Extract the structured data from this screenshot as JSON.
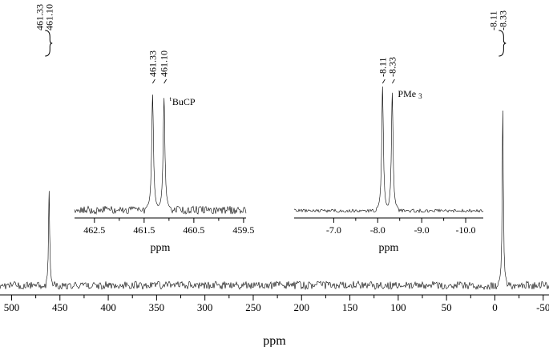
{
  "chart_data": {
    "type": "line",
    "title": "",
    "main": {
      "xlabel": "ppm",
      "xlim": [
        512,
        -56
      ],
      "ticks": [
        500,
        450,
        400,
        350,
        300,
        250,
        200,
        150,
        100,
        50,
        0,
        -50
      ],
      "tick_labels": [
        "500",
        "450",
        "400",
        "350",
        "300",
        "250",
        "200",
        "150",
        "100",
        "50",
        "0",
        "-50"
      ],
      "peaks": [
        {
          "ppm": 461.2,
          "height": 0.54
        },
        {
          "ppm": -8.2,
          "height": 1.0
        }
      ],
      "peak_groups": [
        {
          "labels": [
            "461.33",
            "461.10"
          ],
          "at": 461.2
        },
        {
          "labels": [
            "-8.11",
            "-8.33"
          ],
          "at": -8.2
        }
      ]
    },
    "insets": [
      {
        "xlabel": "ppm",
        "xlim": [
          462.9,
          459.45
        ],
        "ticks": [
          462.5,
          461.5,
          460.5,
          459.5
        ],
        "tick_labels": [
          "462.5",
          "461.5",
          "460.5",
          "459.5"
        ],
        "peaks": [
          {
            "ppm": 461.33,
            "height": 1.0
          },
          {
            "ppm": 461.1,
            "height": 0.97
          }
        ],
        "peak_labels": [
          "461.33",
          "461.10"
        ],
        "annotation_sup": "t",
        "annotation": "BuCP"
      },
      {
        "xlabel": "ppm",
        "xlim": [
          -6.1,
          -10.4
        ],
        "ticks": [
          -7.0,
          -8.0,
          -9.0,
          -10.0
        ],
        "tick_labels": [
          "-7.0",
          "-8.0",
          "-9.0",
          "-10.0"
        ],
        "peaks": [
          {
            "ppm": -8.11,
            "height": 1.0
          },
          {
            "ppm": -8.33,
            "height": 0.95
          }
        ],
        "peak_labels": [
          "-8.11",
          "-8.33"
        ],
        "annotation": "PMe",
        "annotation_sub": "3"
      }
    ]
  }
}
